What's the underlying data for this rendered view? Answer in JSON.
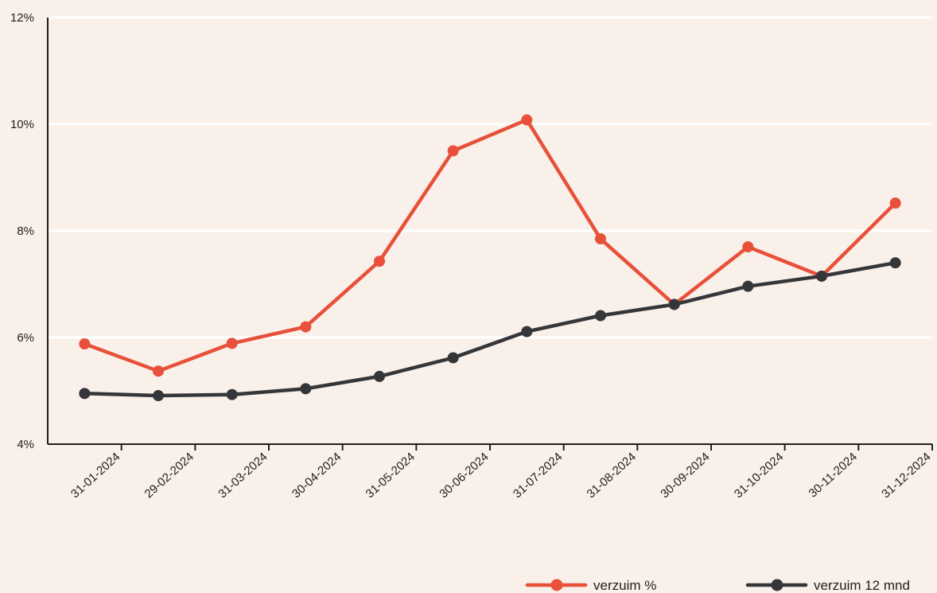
{
  "colors": {
    "background": "#f8f0e9",
    "gridline": "#ffffff",
    "axis": "#1f1f1f",
    "series_red": "#e8503a",
    "series_dark": "#35363a"
  },
  "chart_data": {
    "type": "line",
    "title": "",
    "xlabel": "",
    "ylabel": "",
    "ylim": [
      4,
      12
    ],
    "yticks": [
      4,
      6,
      8,
      10,
      12
    ],
    "ytick_suffix": "%",
    "grid": true,
    "legend_position": "bottom-right",
    "categories": [
      "31-01-2024",
      "29-02-2024",
      "31-03-2024",
      "30-04-2024",
      "31-05-2024",
      "30-06-2024",
      "31-07-2024",
      "31-08-2024",
      "30-09-2024",
      "31-10-2024",
      "30-11-2024",
      "31-12-2024"
    ],
    "series": [
      {
        "name": "verzuim %",
        "color": "#e8503a",
        "values": [
          5.88,
          5.37,
          5.89,
          6.2,
          7.43,
          9.5,
          10.08,
          7.85,
          6.62,
          7.7,
          7.15,
          8.52
        ]
      },
      {
        "name": "verzuim 12 mnd",
        "color": "#35363a",
        "values": [
          4.95,
          4.91,
          4.93,
          5.04,
          5.27,
          5.62,
          6.11,
          6.41,
          6.62,
          6.96,
          7.15,
          7.4
        ]
      }
    ]
  }
}
